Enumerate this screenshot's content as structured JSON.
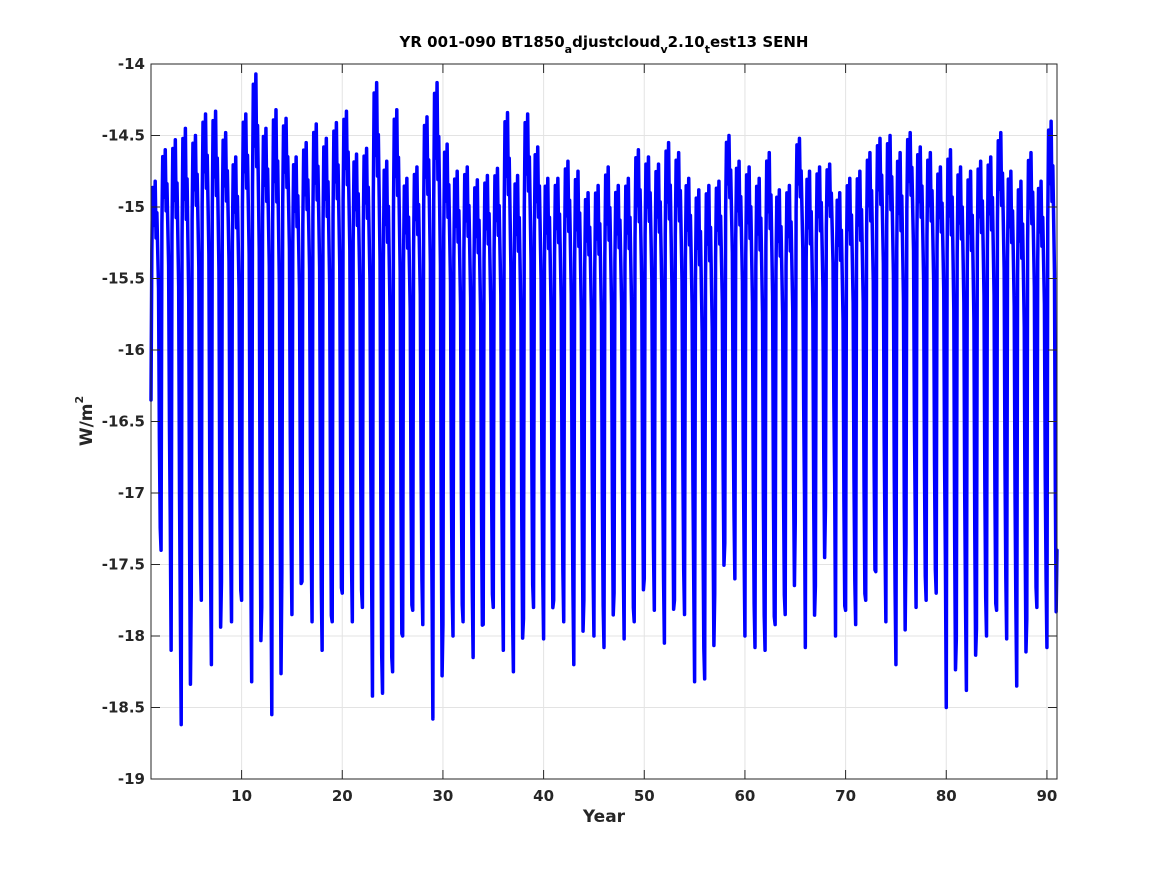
{
  "chart_data": {
    "type": "line",
    "title": {
      "parts": [
        {
          "text": "YR 001-090 BT1850",
          "style": "normal"
        },
        {
          "text": "a",
          "style": "sub"
        },
        {
          "text": "djustcloud",
          "style": "normal"
        },
        {
          "text": "v",
          "style": "sub"
        },
        {
          "text": "2.10",
          "style": "normal"
        },
        {
          "text": "t",
          "style": "sub"
        },
        {
          "text": "est13 SENH",
          "style": "normal"
        }
      ]
    },
    "xlabel": "Year",
    "ylabel": {
      "base": "W/m",
      "sup": "2"
    },
    "xlim": [
      1,
      91
    ],
    "ylim": [
      -19,
      -14
    ],
    "xticks": [
      10,
      20,
      30,
      40,
      50,
      60,
      70,
      80,
      90
    ],
    "xtick_labels": [
      "10",
      "20",
      "30",
      "40",
      "50",
      "60",
      "70",
      "80",
      "90"
    ],
    "yticks": [
      -19,
      -18.5,
      -18,
      -17.5,
      -17,
      -16.5,
      -16,
      -15.5,
      -15,
      -14.5,
      -14
    ],
    "ytick_labels": [
      "-19",
      "-18.5",
      "-18",
      "-17.5",
      "-17",
      "-16.5",
      "-16",
      "-15.5",
      "-15",
      "-14.5",
      "-14"
    ],
    "grid": true,
    "series": [
      {
        "color": "#0000ff",
        "points_per_year": 12,
        "first_value": -16.35,
        "last_value": -17.4,
        "annual_cycle_shape": [
          -17.7,
          -15.3,
          -14.8,
          -14.95,
          -15.1,
          -14.75,
          -15.2,
          -15.0,
          -15.3,
          -15.6,
          -16.8,
          -17.5
        ],
        "yearly_max": [
          -14.82,
          -14.6,
          -14.53,
          -14.45,
          -14.5,
          -14.35,
          -14.33,
          -14.48,
          -14.65,
          -14.35,
          -14.07,
          -14.45,
          -14.32,
          -14.38,
          -14.65,
          -14.55,
          -14.42,
          -14.52,
          -14.41,
          -14.33,
          -14.63,
          -14.59,
          -14.13,
          -14.68,
          -14.32,
          -14.8,
          -14.72,
          -14.37,
          -14.13,
          -14.56,
          -14.75,
          -14.72,
          -14.81,
          -14.78,
          -14.73,
          -14.34,
          -14.78,
          -14.35,
          -14.58,
          -14.8,
          -14.8,
          -14.68,
          -14.75,
          -14.9,
          -14.85,
          -14.72,
          -14.85,
          -14.8,
          -14.6,
          -14.65,
          -14.7,
          -14.55,
          -14.62,
          -14.8,
          -14.88,
          -14.85,
          -14.82,
          -14.5,
          -14.68,
          -14.72,
          -14.8,
          -14.62,
          -14.88,
          -14.85,
          -14.52,
          -14.75,
          -14.72,
          -14.7,
          -14.9,
          -14.8,
          -14.75,
          -14.62,
          -14.52,
          -14.5,
          -14.62,
          -14.48,
          -14.58,
          -14.62,
          -14.72,
          -14.6,
          -14.72,
          -14.75,
          -14.68,
          -14.65,
          -14.48,
          -14.75,
          -14.82,
          -14.62,
          -14.82,
          -14.4
        ],
        "yearly_min": [
          -17.42,
          -17.4,
          -18.1,
          -18.62,
          -17.7,
          -17.75,
          -18.2,
          -17.62,
          -17.9,
          -17.75,
          -18.32,
          -17.8,
          -18.55,
          -17.55,
          -17.85,
          -17.62,
          -17.9,
          -18.1,
          -17.9,
          -17.7,
          -17.9,
          -17.8,
          -18.42,
          -18.4,
          -18.25,
          -18.0,
          -17.82,
          -17.92,
          -18.58,
          -17.92,
          -18.0,
          -17.9,
          -18.15,
          -17.92,
          -17.8,
          -18.1,
          -18.25,
          -17.88,
          -17.8,
          -18.02,
          -17.75,
          -17.9,
          -18.2,
          -17.75,
          -18.0,
          -18.08,
          -17.7,
          -18.02,
          -17.9,
          -17.6,
          -17.82,
          -18.05,
          -17.75,
          -17.85,
          -18.32,
          -18.3,
          -17.7,
          -17.35,
          -17.6,
          -18.0,
          -18.08,
          -18.1,
          -17.92,
          -17.85,
          -17.2,
          -18.08,
          -17.65,
          -17.1,
          -18.0,
          -17.82,
          -17.92,
          -17.75,
          -17.55,
          -17.9,
          -18.2,
          -17.35,
          -17.8,
          -17.75,
          -17.7,
          -18.5,
          -18.02,
          -18.38,
          -17.95,
          -18.0,
          -17.82,
          -18.02,
          -18.35,
          -17.88,
          -17.8,
          -18.08
        ]
      }
    ]
  }
}
